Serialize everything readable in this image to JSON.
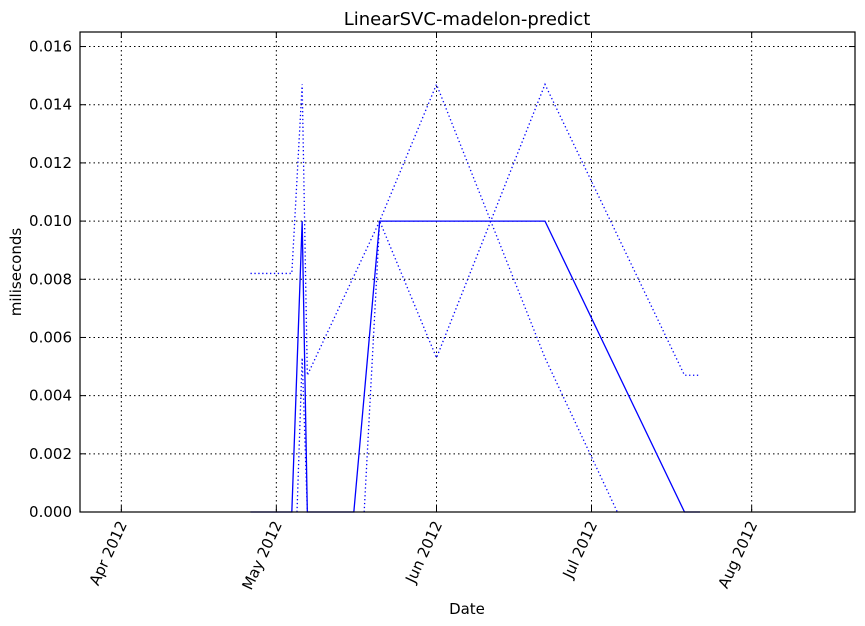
{
  "chart_data": {
    "type": "line",
    "title": "LinearSVC-madelon-predict",
    "xlabel": "Date",
    "ylabel": "miliseconds",
    "xlim": [
      "2012-03-24",
      "2012-08-21"
    ],
    "ylim": [
      0,
      0.0165
    ],
    "x_ticks": [
      {
        "date": "2012-04-01",
        "label": "Apr 2012"
      },
      {
        "date": "2012-05-01",
        "label": "May 2012"
      },
      {
        "date": "2012-06-01",
        "label": "Jun 2012"
      },
      {
        "date": "2012-07-01",
        "label": "Jul 2012"
      },
      {
        "date": "2012-08-01",
        "label": "Aug 2012"
      }
    ],
    "y_ticks": [
      {
        "value": 0.0,
        "label": "0.000"
      },
      {
        "value": 0.002,
        "label": "0.002"
      },
      {
        "value": 0.004,
        "label": "0.004"
      },
      {
        "value": 0.006,
        "label": "0.006"
      },
      {
        "value": 0.008,
        "label": "0.008"
      },
      {
        "value": 0.01,
        "label": "0.010"
      },
      {
        "value": 0.012,
        "label": "0.012"
      },
      {
        "value": 0.014,
        "label": "0.014"
      },
      {
        "value": 0.016,
        "label": "0.016"
      }
    ],
    "grid": true,
    "series": [
      {
        "style": "solid",
        "color": "#0000ff",
        "points": [
          {
            "x": "2012-04-26",
            "y": 0.0
          },
          {
            "x": "2012-05-04",
            "y": 0.0
          },
          {
            "x": "2012-05-06",
            "y": 0.01
          },
          {
            "x": "2012-05-07",
            "y": 0.0
          },
          {
            "x": "2012-05-16",
            "y": 0.0
          },
          {
            "x": "2012-05-21",
            "y": 0.01
          },
          {
            "x": "2012-06-22",
            "y": 0.01
          },
          {
            "x": "2012-07-19",
            "y": 0.0
          },
          {
            "x": "2012-07-22",
            "y": 0.0
          }
        ]
      },
      {
        "style": "dotted",
        "color": "#0000ff",
        "points": [
          {
            "x": "2012-04-26",
            "y": 0.0082
          },
          {
            "x": "2012-05-04",
            "y": 0.0082
          },
          {
            "x": "2012-05-06",
            "y": 0.0147
          },
          {
            "x": "2012-05-07",
            "y": 0.0047
          },
          {
            "x": "2012-05-21",
            "y": 0.01
          },
          {
            "x": "2012-06-01",
            "y": 0.0147
          },
          {
            "x": "2012-06-22",
            "y": 0.0053
          },
          {
            "x": "2012-07-06",
            "y": 0.0
          }
        ]
      },
      {
        "style": "dotted",
        "color": "#0000ff",
        "points": [
          {
            "x": "2012-05-05",
            "y": 0.0
          },
          {
            "x": "2012-05-06",
            "y": 0.0053
          },
          {
            "x": "2012-05-07",
            "y": 0.0
          }
        ]
      },
      {
        "style": "dotted",
        "color": "#0000ff",
        "points": [
          {
            "x": "2012-05-18",
            "y": 0.0
          },
          {
            "x": "2012-05-21",
            "y": 0.01
          },
          {
            "x": "2012-06-01",
            "y": 0.0053
          },
          {
            "x": "2012-06-22",
            "y": 0.0147
          },
          {
            "x": "2012-07-19",
            "y": 0.0047
          },
          {
            "x": "2012-07-22",
            "y": 0.0047
          }
        ]
      }
    ]
  }
}
